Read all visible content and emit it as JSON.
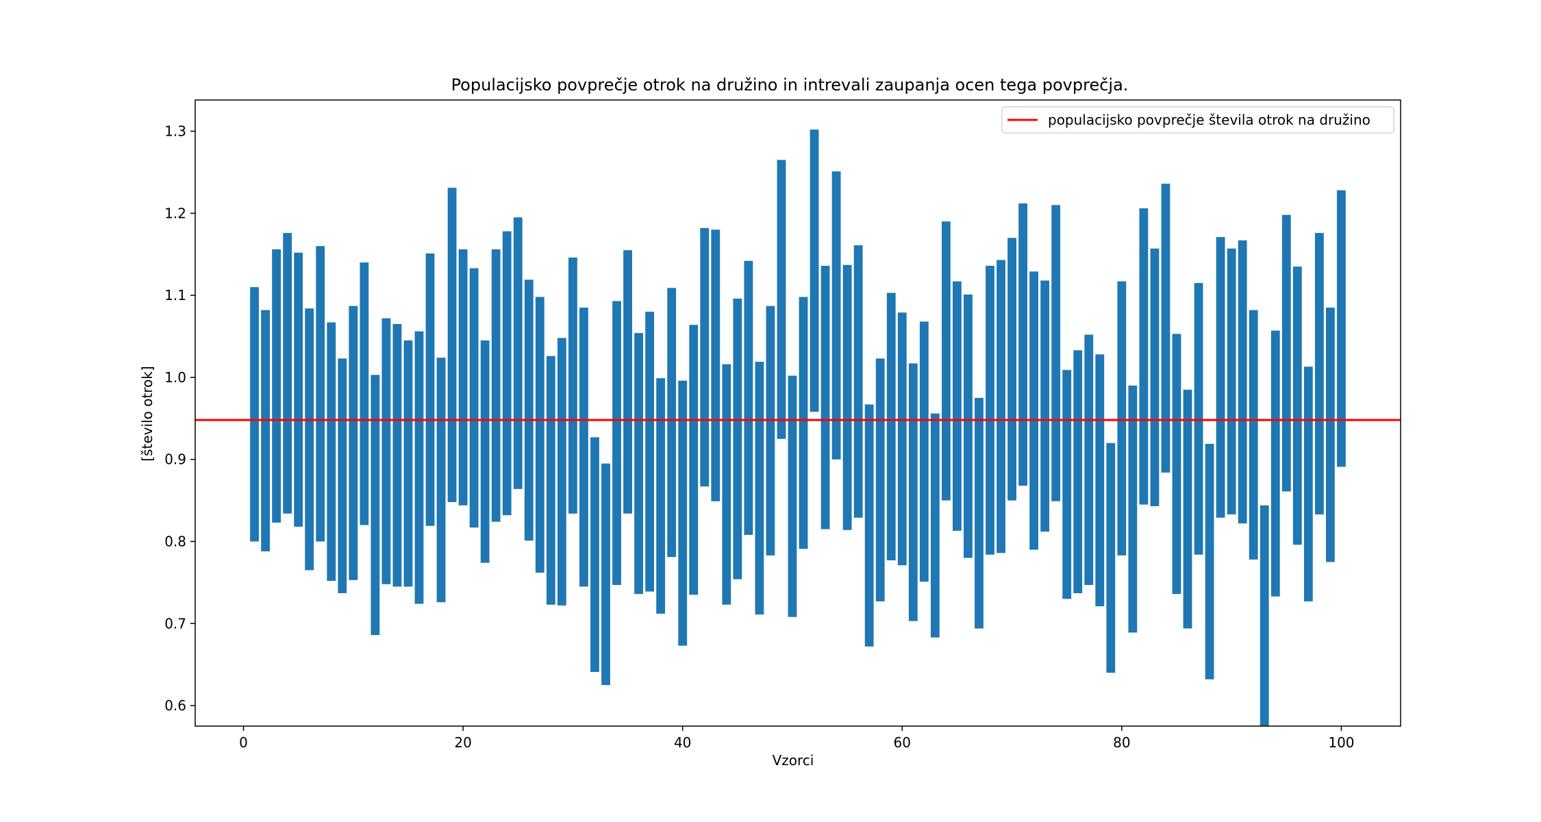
{
  "chart_data": {
    "type": "bar",
    "title": "Populacijsko povprečje otrok na družino in intrevali zaupanja ocen tega povprečja.",
    "xlabel": "Vzorci",
    "ylabel": "[število otrok]",
    "xlim": [
      -4.4,
      105.4
    ],
    "ylim": [
      0.575,
      1.338
    ],
    "xticks": [
      0,
      20,
      40,
      60,
      80,
      100
    ],
    "xtick_labels": [
      "0",
      "20",
      "40",
      "60",
      "80",
      "100"
    ],
    "yticks": [
      0.6,
      0.7,
      0.8,
      0.9,
      1.0,
      1.1,
      1.2,
      1.3
    ],
    "ytick_labels": [
      "0.6",
      "0.7",
      "0.8",
      "0.9",
      "1.0",
      "1.1",
      "1.2",
      "1.3"
    ],
    "grid": false,
    "legend_position": "top-right",
    "population_mean": {
      "label": "populacijsko povprečje števila otrok na družino",
      "value": 0.948,
      "color": "#ff0000"
    },
    "bar_color": "#1f77b4",
    "bar_width": 0.8,
    "x": [
      1,
      2,
      3,
      4,
      5,
      6,
      7,
      8,
      9,
      10,
      11,
      12,
      13,
      14,
      15,
      16,
      17,
      18,
      19,
      20,
      21,
      22,
      23,
      24,
      25,
      26,
      27,
      28,
      29,
      30,
      31,
      32,
      33,
      34,
      35,
      36,
      37,
      38,
      39,
      40,
      41,
      42,
      43,
      44,
      45,
      46,
      47,
      48,
      49,
      50,
      51,
      52,
      53,
      54,
      55,
      56,
      57,
      58,
      59,
      60,
      61,
      62,
      63,
      64,
      65,
      66,
      67,
      68,
      69,
      70,
      71,
      72,
      73,
      74,
      75,
      76,
      77,
      78,
      79,
      80,
      81,
      82,
      83,
      84,
      85,
      86,
      87,
      88,
      89,
      90,
      91,
      92,
      93,
      94,
      95,
      96,
      97,
      98,
      99,
      100
    ],
    "lower": [
      0.8,
      0.788,
      0.823,
      0.834,
      0.818,
      0.765,
      0.8,
      0.752,
      0.737,
      0.753,
      0.82,
      0.686,
      0.748,
      0.745,
      0.745,
      0.724,
      0.819,
      0.726,
      0.848,
      0.844,
      0.817,
      0.774,
      0.824,
      0.832,
      0.864,
      0.801,
      0.762,
      0.723,
      0.722,
      0.834,
      0.745,
      0.641,
      0.625,
      0.747,
      0.834,
      0.736,
      0.739,
      0.712,
      0.781,
      0.673,
      0.735,
      0.867,
      0.849,
      0.723,
      0.754,
      0.808,
      0.711,
      0.783,
      0.925,
      0.708,
      0.791,
      0.958,
      0.815,
      0.9,
      0.814,
      0.829,
      0.672,
      0.727,
      0.777,
      0.771,
      0.703,
      0.751,
      0.683,
      0.85,
      0.813,
      0.78,
      0.694,
      0.784,
      0.786,
      0.85,
      0.868,
      0.79,
      0.812,
      0.849,
      0.73,
      0.737,
      0.747,
      0.721,
      0.64,
      0.783,
      0.689,
      0.845,
      0.843,
      0.884,
      0.736,
      0.694,
      0.784,
      0.632,
      0.829,
      0.833,
      0.822,
      0.778,
      0.575,
      0.733,
      0.861,
      0.796,
      0.727,
      0.833,
      0.775,
      0.891
    ],
    "upper": [
      1.11,
      1.082,
      1.156,
      1.176,
      1.152,
      1.084,
      1.16,
      1.067,
      1.023,
      1.087,
      1.14,
      1.003,
      1.072,
      1.065,
      1.045,
      1.056,
      1.151,
      1.024,
      1.231,
      1.156,
      1.133,
      1.045,
      1.156,
      1.178,
      1.195,
      1.119,
      1.098,
      1.026,
      1.048,
      1.146,
      1.085,
      0.927,
      0.895,
      1.093,
      1.155,
      1.054,
      1.08,
      0.999,
      1.109,
      0.996,
      1.064,
      1.182,
      1.18,
      1.016,
      1.096,
      1.142,
      1.019,
      1.087,
      1.265,
      1.002,
      1.098,
      1.302,
      1.136,
      1.251,
      1.137,
      1.161,
      0.967,
      1.023,
      1.103,
      1.079,
      1.017,
      1.068,
      0.956,
      1.19,
      1.117,
      1.101,
      0.975,
      1.136,
      1.143,
      1.17,
      1.212,
      1.129,
      1.118,
      1.21,
      1.009,
      1.033,
      1.052,
      1.028,
      0.92,
      1.117,
      0.99,
      1.206,
      1.157,
      1.236,
      1.053,
      0.985,
      1.115,
      0.919,
      1.171,
      1.157,
      1.167,
      1.082,
      0.844,
      1.057,
      1.198,
      1.135,
      1.013,
      1.176,
      1.085,
      1.228
    ]
  }
}
